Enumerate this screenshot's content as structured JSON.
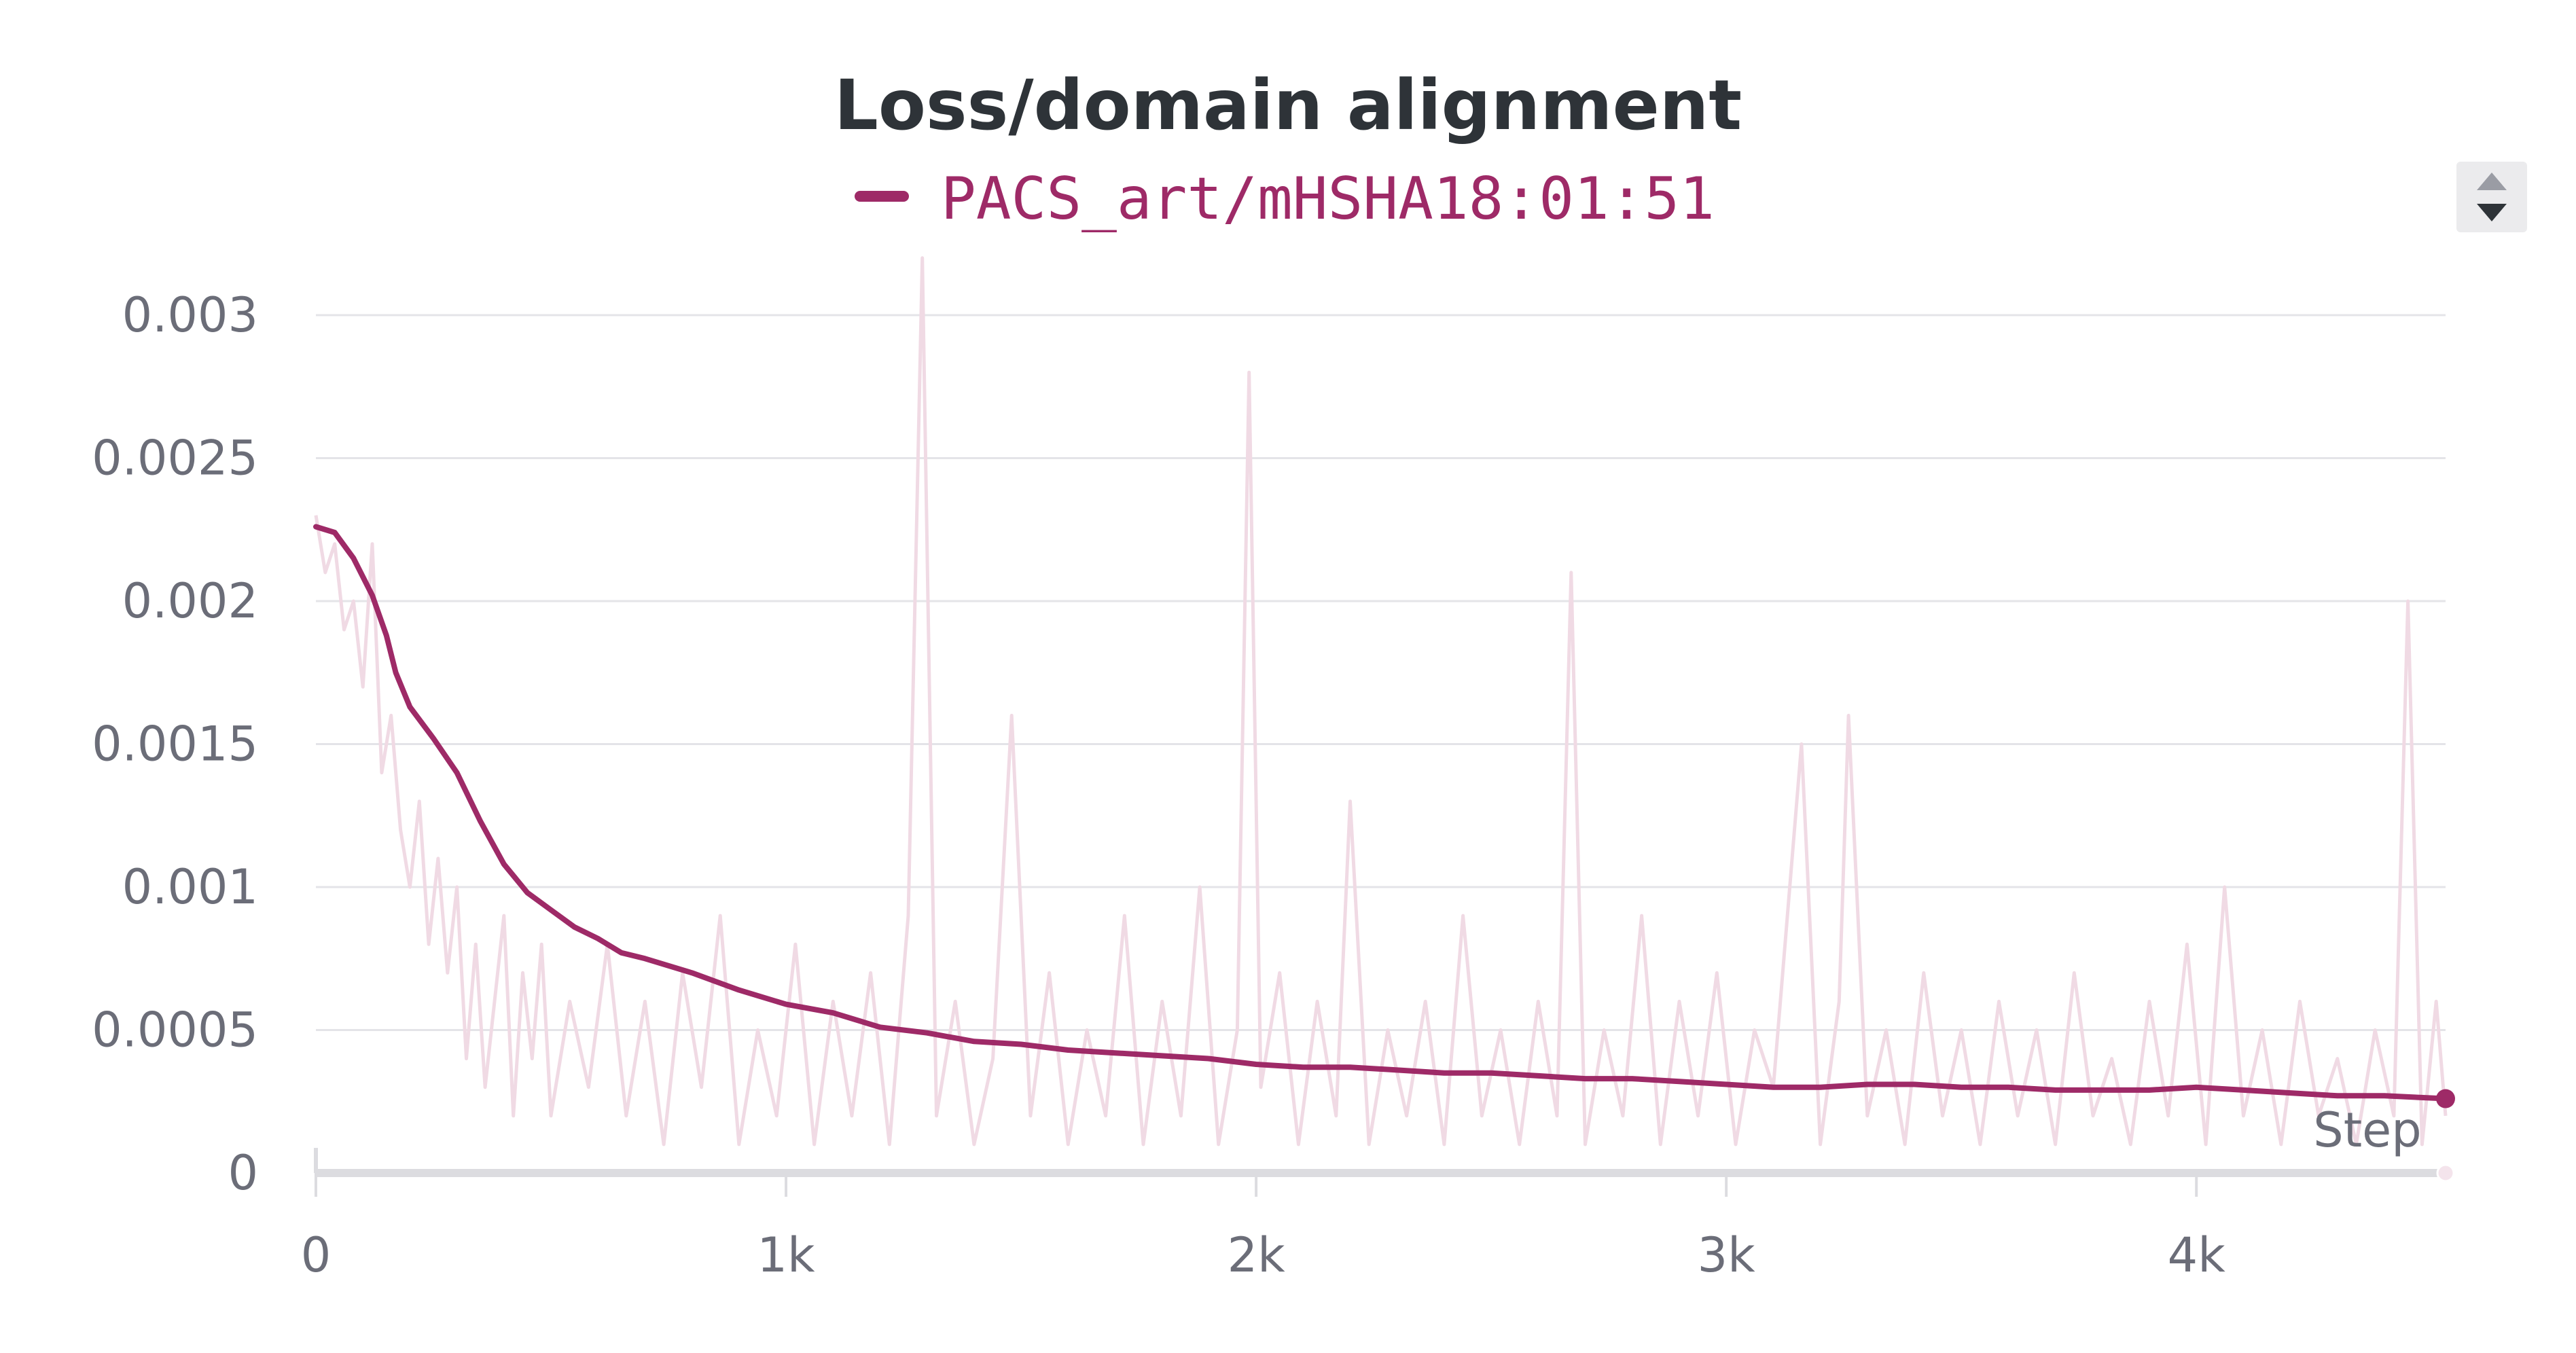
{
  "chart_data": {
    "type": "line",
    "title": "Loss/domain alignment",
    "xlabel": "Step",
    "ylabel": "",
    "xlim": [
      0,
      4530
    ],
    "ylim": [
      0,
      0.0032
    ],
    "x_ticks": [
      {
        "value": 0,
        "label": "0"
      },
      {
        "value": 1000,
        "label": "1k"
      },
      {
        "value": 2000,
        "label": "2k"
      },
      {
        "value": 3000,
        "label": "3k"
      },
      {
        "value": 4000,
        "label": "4k"
      }
    ],
    "y_ticks": [
      {
        "value": 0,
        "label": "0"
      },
      {
        "value": 0.0005,
        "label": "0.0005"
      },
      {
        "value": 0.001,
        "label": "0.001"
      },
      {
        "value": 0.0015,
        "label": "0.0015"
      },
      {
        "value": 0.002,
        "label": "0.002"
      },
      {
        "value": 0.0025,
        "label": "0.0025"
      },
      {
        "value": 0.003,
        "label": "0.003"
      }
    ],
    "grid": true,
    "legend_position": "top-center",
    "series": [
      {
        "name": "PACS_art/mHSHA18:01:51",
        "color": "#9e2a67",
        "raw_color": "#f0dae4",
        "smoothed": {
          "x": [
            0,
            40,
            80,
            120,
            150,
            170,
            200,
            250,
            300,
            350,
            400,
            450,
            500,
            550,
            600,
            650,
            700,
            800,
            900,
            1000,
            1100,
            1200,
            1300,
            1400,
            1500,
            1600,
            1700,
            1800,
            1900,
            2000,
            2100,
            2200,
            2300,
            2400,
            2500,
            2600,
            2700,
            2800,
            2900,
            3000,
            3100,
            3200,
            3300,
            3400,
            3500,
            3600,
            3700,
            3800,
            3900,
            4000,
            4100,
            4200,
            4300,
            4400,
            4530
          ],
          "y": [
            0.00226,
            0.00224,
            0.00215,
            0.00202,
            0.00188,
            0.00175,
            0.00163,
            0.00152,
            0.0014,
            0.00123,
            0.00108,
            0.00098,
            0.00092,
            0.00086,
            0.00082,
            0.00077,
            0.00075,
            0.0007,
            0.00064,
            0.00059,
            0.00056,
            0.00051,
            0.00049,
            0.00046,
            0.00045,
            0.00043,
            0.00042,
            0.00041,
            0.0004,
            0.00038,
            0.00037,
            0.00037,
            0.00036,
            0.00035,
            0.00035,
            0.00034,
            0.00033,
            0.00033,
            0.00032,
            0.00031,
            0.0003,
            0.0003,
            0.00031,
            0.00031,
            0.0003,
            0.0003,
            0.00029,
            0.00029,
            0.00029,
            0.0003,
            0.00029,
            0.00028,
            0.00027,
            0.00027,
            0.00026
          ]
        },
        "raw": {
          "x": [
            0,
            20,
            40,
            60,
            80,
            100,
            120,
            140,
            160,
            180,
            200,
            220,
            240,
            260,
            280,
            300,
            320,
            340,
            360,
            380,
            400,
            420,
            440,
            460,
            480,
            500,
            540,
            580,
            620,
            660,
            700,
            740,
            780,
            820,
            860,
            900,
            940,
            980,
            1020,
            1060,
            1100,
            1140,
            1180,
            1220,
            1260,
            1290,
            1320,
            1360,
            1400,
            1440,
            1480,
            1520,
            1560,
            1600,
            1640,
            1680,
            1720,
            1760,
            1800,
            1840,
            1880,
            1920,
            1960,
            1985,
            2010,
            2050,
            2090,
            2130,
            2170,
            2200,
            2240,
            2280,
            2320,
            2360,
            2400,
            2440,
            2480,
            2520,
            2560,
            2600,
            2640,
            2670,
            2700,
            2740,
            2780,
            2820,
            2860,
            2900,
            2940,
            2980,
            3020,
            3060,
            3100,
            3160,
            3200,
            3240,
            3260,
            3300,
            3340,
            3380,
            3420,
            3460,
            3500,
            3540,
            3580,
            3620,
            3660,
            3700,
            3740,
            3780,
            3820,
            3860,
            3900,
            3940,
            3980,
            4020,
            4060,
            4100,
            4140,
            4180,
            4220,
            4260,
            4300,
            4340,
            4380,
            4420,
            4450,
            4480,
            4510,
            4530
          ],
          "y": [
            0.0023,
            0.0021,
            0.0022,
            0.0019,
            0.002,
            0.0017,
            0.0022,
            0.0014,
            0.0016,
            0.0012,
            0.001,
            0.0013,
            0.0008,
            0.0011,
            0.0007,
            0.001,
            0.0004,
            0.0008,
            0.0003,
            0.0006,
            0.0009,
            0.0002,
            0.0007,
            0.0004,
            0.0008,
            0.0002,
            0.0006,
            0.0003,
            0.0008,
            0.0002,
            0.0006,
            0.0001,
            0.0007,
            0.0003,
            0.0009,
            0.0001,
            0.0005,
            0.0002,
            0.0008,
            0.0001,
            0.0006,
            0.0002,
            0.0007,
            0.0001,
            0.0009,
            0.0032,
            0.0002,
            0.0006,
            0.0001,
            0.0004,
            0.0016,
            0.0002,
            0.0007,
            0.0001,
            0.0005,
            0.0002,
            0.0009,
            0.0001,
            0.0006,
            0.0002,
            0.001,
            0.0001,
            0.0005,
            0.0028,
            0.0003,
            0.0007,
            0.0001,
            0.0006,
            0.0002,
            0.0013,
            0.0001,
            0.0005,
            0.0002,
            0.0006,
            0.0001,
            0.0009,
            0.0002,
            0.0005,
            0.0001,
            0.0006,
            0.0002,
            0.0021,
            0.0001,
            0.0005,
            0.0002,
            0.0009,
            0.0001,
            0.0006,
            0.0002,
            0.0007,
            0.0001,
            0.0005,
            0.0003,
            0.0015,
            0.0001,
            0.0006,
            0.0016,
            0.0002,
            0.0005,
            0.0001,
            0.0007,
            0.0002,
            0.0005,
            0.0001,
            0.0006,
            0.0002,
            0.0005,
            0.0001,
            0.0007,
            0.0002,
            0.0004,
            0.0001,
            0.0006,
            0.0002,
            0.0008,
            0.0001,
            0.001,
            0.0002,
            0.0005,
            0.0001,
            0.0006,
            0.0002,
            0.0004,
            0.0001,
            0.0005,
            0.0002,
            0.002,
            0.0001,
            0.0006,
            0.0002
          ]
        }
      }
    ]
  }
}
